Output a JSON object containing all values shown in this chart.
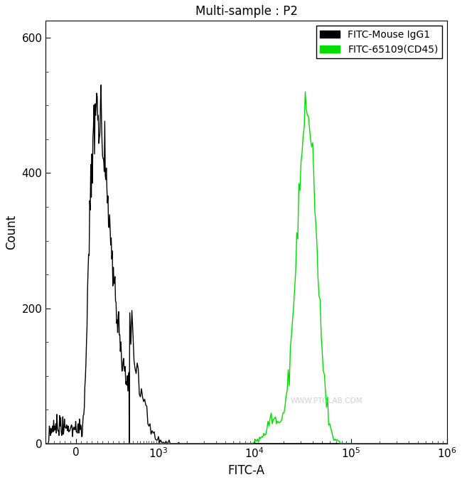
{
  "title": "Multi-sample : P2",
  "xlabel": "FITC-A",
  "ylabel": "Count",
  "ylim": [
    0,
    625
  ],
  "yticks": [
    0,
    200,
    400,
    600
  ],
  "xlim_min": -280,
  "xlim_max": 1000000,
  "symlog_linthresh": 500,
  "symlog_linscale": 0.5,
  "legend_labels": [
    "FITC-Mouse IgG1",
    "FITC-65109(CD45)"
  ],
  "legend_colors": [
    "#000000",
    "#00dd00"
  ],
  "watermark": "WWW.PTGLAB.COM",
  "background_color": "#ffffff",
  "curve1_color": "#000000",
  "curve2_color": "#00dd00",
  "line_width": 1.0,
  "curve1_peak_x": 250,
  "curve1_peak_y": 530,
  "curve1_sigma_log": 0.2,
  "curve2_peak_x": 35000,
  "curve2_peak_y": 520,
  "curve2_sigma_log": 0.1
}
